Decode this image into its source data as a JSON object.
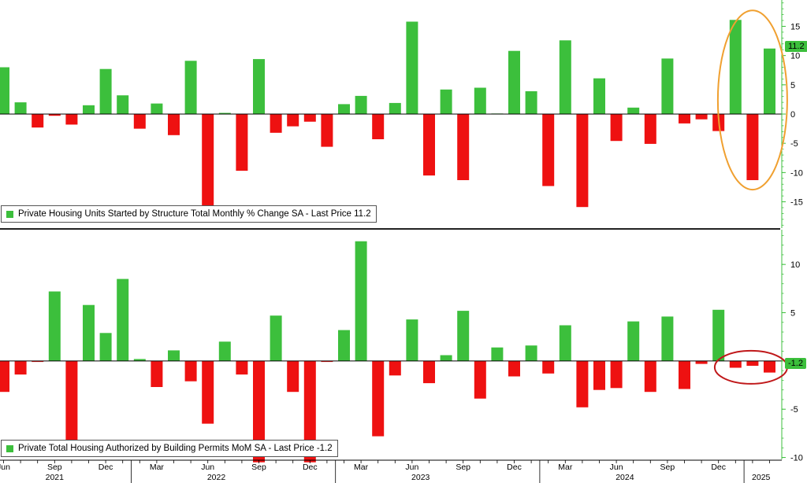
{
  "chart_data": [
    {
      "type": "bar",
      "panel": "top",
      "legend": "Private Housing Units Started by Structure Total Monthly % Change SA - Last Price 11.2",
      "last_price_label": "11.2",
      "ylim": [
        -19.5,
        19.5
      ],
      "yticks": [
        -15,
        -10,
        -5,
        0,
        5,
        10,
        15
      ],
      "ytick_labels": [
        "-15",
        "-10",
        "-5",
        "0",
        "5",
        "10",
        "15"
      ],
      "positive_color": "#3cbf3c",
      "negative_color": "#ee1111",
      "values": [
        8,
        2,
        -2.3,
        -0.3,
        -1.8,
        1.5,
        7.7,
        3.2,
        -2.5,
        1.8,
        -3.6,
        9.1,
        -16,
        0.2,
        -9.7,
        9.4,
        -3.2,
        -2.1,
        -1.3,
        -5.6,
        1.7,
        3.1,
        -4.3,
        1.9,
        15.8,
        -10.5,
        4.2,
        -11.3,
        4.5,
        0.1,
        10.8,
        3.9,
        -12.3,
        12.6,
        -15.9,
        6.1,
        -4.6,
        1.1,
        -5.1,
        9.5,
        -1.6,
        -0.9,
        -2.9,
        16.1,
        -11.3,
        11.2
      ],
      "highlight": "ellipse"
    },
    {
      "type": "bar",
      "panel": "bottom",
      "legend": "Private Total Housing Authorized by Building Permits MoM SA - Last Price -1.2",
      "last_price_label": "-1.2",
      "ylim": [
        -10.2,
        13.6
      ],
      "yticks": [
        -10,
        -5,
        0,
        5,
        10
      ],
      "ytick_labels": [
        "-10",
        "-5",
        "0",
        "5",
        "10"
      ],
      "positive_color": "#3cbf3c",
      "negative_color": "#ee1111",
      "values": [
        -3.2,
        -1.4,
        -0.1,
        7.2,
        -8.2,
        5.8,
        2.9,
        8.5,
        0.2,
        -2.7,
        1.1,
        -2.1,
        -6.5,
        2,
        -1.4,
        -10.5,
        4.7,
        -3.2,
        -10.5,
        -0.1,
        3.2,
        12.4,
        -7.8,
        -1.5,
        4.3,
        -2.3,
        0.6,
        5.2,
        -3.9,
        1.4,
        -1.6,
        1.6,
        -1.3,
        3.7,
        -4.8,
        -3,
        -2.8,
        4.1,
        -3.2,
        4.6,
        -2.9,
        -0.3,
        5.3,
        -0.7,
        -0.5,
        -1.2
      ],
      "highlight": "ellipse"
    }
  ],
  "x_axis": {
    "month_labels": [
      {
        "i": 0,
        "label": "Jun"
      },
      {
        "i": 3,
        "label": "Sep"
      },
      {
        "i": 6,
        "label": "Dec"
      },
      {
        "i": 9,
        "label": "Mar"
      },
      {
        "i": 12,
        "label": "Jun"
      },
      {
        "i": 15,
        "label": "Sep"
      },
      {
        "i": 18,
        "label": "Dec"
      },
      {
        "i": 21,
        "label": "Mar"
      },
      {
        "i": 24,
        "label": "Jun"
      },
      {
        "i": 27,
        "label": "Sep"
      },
      {
        "i": 30,
        "label": "Dec"
      },
      {
        "i": 33,
        "label": "Mar"
      },
      {
        "i": 36,
        "label": "Jun"
      },
      {
        "i": 39,
        "label": "Sep"
      },
      {
        "i": 42,
        "label": "Dec"
      }
    ],
    "year_labels": [
      {
        "i": 3,
        "label": "2021"
      },
      {
        "i": 12.5,
        "label": "2022"
      },
      {
        "i": 24.5,
        "label": "2023"
      },
      {
        "i": 36.5,
        "label": "2024"
      },
      {
        "i": 44.5,
        "label": "2025"
      }
    ],
    "year_boundaries": [
      7.5,
      19.5,
      31.5,
      43.5
    ]
  },
  "styles": {
    "zero_line_color": "#000000",
    "axis_color": "#3cbf3c",
    "highlight_color_top": "#f0a030",
    "highlight_color_bottom": "#c0181a",
    "separator_color": "#222222"
  }
}
